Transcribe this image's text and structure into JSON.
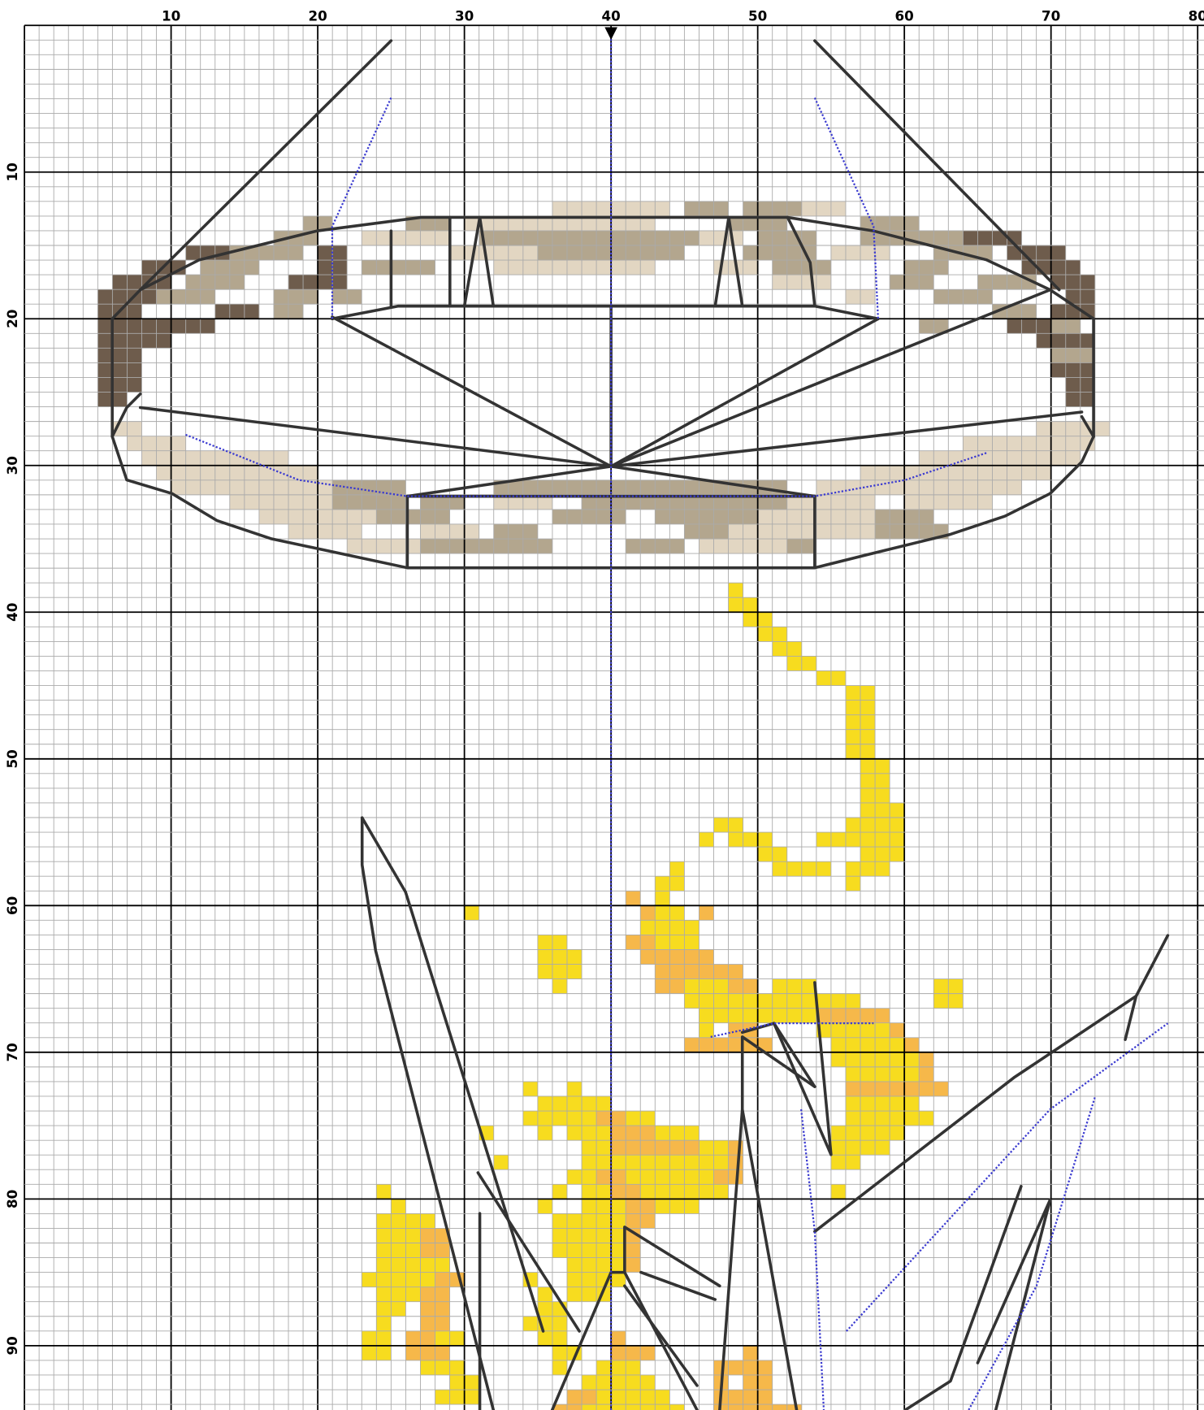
{
  "top_axis": {
    "labels": [
      "10",
      "20",
      "30",
      "40",
      "50",
      "60",
      "70",
      "80"
    ]
  },
  "left_axis": {
    "labels": [
      "10",
      "20",
      "30",
      "40",
      "50",
      "60",
      "70",
      "80",
      "90"
    ]
  }
}
